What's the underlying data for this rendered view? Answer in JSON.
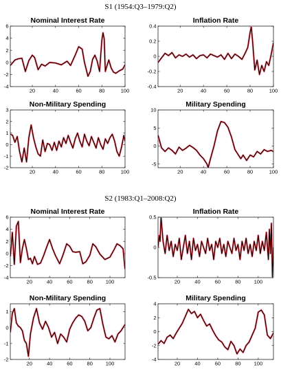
{
  "sections": [
    {
      "title": "S1 (1954:Q3–1979:Q2)"
    },
    {
      "title": "S2 (1983:Q1–2008:Q2)"
    }
  ],
  "colors": {
    "line_main": "#000000",
    "line_band": "#d40000",
    "band_glow": "#f4c4d4"
  },
  "chart_data": [
    {
      "type": "line",
      "title": "Nominal Interest Rate",
      "xlim": [
        1,
        100
      ],
      "ylim": [
        -4,
        6
      ],
      "xticks": [
        20,
        40,
        60,
        80,
        100
      ],
      "yticks": [
        -4,
        -2,
        0,
        2,
        4,
        6
      ],
      "series": [
        {
          "x": [
            1,
            5,
            8,
            11,
            14,
            17,
            20,
            22,
            25,
            28,
            31,
            35,
            40,
            45,
            50,
            53,
            57,
            60,
            63,
            65,
            68,
            70,
            72,
            74,
            76,
            78,
            80,
            81,
            82,
            83,
            84,
            86,
            88,
            90,
            92,
            95,
            98,
            100
          ],
          "y": [
            -0.5,
            0.4,
            0.6,
            0.7,
            -1.5,
            0.3,
            1.2,
            0.8,
            -1.2,
            -0.3,
            -0.6,
            0,
            -0.1,
            -0.4,
            0.2,
            -0.5,
            1.2,
            2.6,
            2.2,
            0,
            -2.3,
            -1.5,
            0.5,
            1.2,
            0.2,
            -1.5,
            3.7,
            4.9,
            3.9,
            -1.5,
            -0.8,
            0.4,
            -0.9,
            -1.6,
            -1.8,
            -1.4,
            -1.1,
            -0.4
          ]
        }
      ]
    },
    {
      "type": "line",
      "title": "Inflation Rate",
      "xlim": [
        1,
        100
      ],
      "ylim": [
        -0.4,
        0.4
      ],
      "xticks": [
        20,
        40,
        60,
        80,
        100
      ],
      "yticks": [
        -0.4,
        -0.2,
        0,
        0.2,
        0.4
      ],
      "series": [
        {
          "x": [
            1,
            4,
            7,
            10,
            13,
            16,
            19,
            22,
            25,
            28,
            31,
            34,
            37,
            40,
            43,
            46,
            49,
            52,
            55,
            58,
            61,
            64,
            67,
            70,
            73,
            76,
            78,
            80,
            81,
            82,
            84,
            86,
            88,
            90,
            92,
            94,
            96,
            98,
            100
          ],
          "y": [
            -0.08,
            -0.02,
            0.04,
            0.01,
            0.05,
            -0.02,
            0.02,
            0.0,
            0.03,
            -0.01,
            0.02,
            -0.03,
            0.01,
            0.02,
            -0.02,
            0.03,
            0.01,
            -0.01,
            0.02,
            -0.04,
            0.04,
            -0.03,
            0.03,
            0.0,
            -0.04,
            0.05,
            0.12,
            0.32,
            0.39,
            0.22,
            -0.18,
            -0.05,
            -0.24,
            -0.12,
            -0.2,
            -0.07,
            -0.12,
            0.02,
            0.18
          ]
        }
      ]
    },
    {
      "type": "line",
      "title": "Non-Military Spending",
      "xlim": [
        1,
        100
      ],
      "ylim": [
        -2,
        3
      ],
      "xticks": [
        20,
        40,
        60,
        80,
        100
      ],
      "yticks": [
        -2,
        -1,
        0,
        1,
        2,
        3
      ],
      "series": [
        {
          "x": [
            1,
            3,
            5,
            7,
            9,
            11,
            13,
            15,
            17,
            19,
            21,
            23,
            25,
            27,
            29,
            31,
            33,
            35,
            37,
            39,
            41,
            43,
            45,
            47,
            49,
            51,
            53,
            55,
            57,
            59,
            61,
            63,
            65,
            67,
            69,
            71,
            73,
            75,
            77,
            79,
            81,
            83,
            85,
            87,
            89,
            91,
            93,
            95,
            97,
            99,
            100
          ],
          "y": [
            0.9,
            0.8,
            0.2,
            0.7,
            -0.6,
            -1.5,
            -0.3,
            -1.5,
            0.6,
            1.7,
            0.6,
            -0.2,
            -0.8,
            -1.0,
            0.4,
            -0.6,
            0.1,
            0.0,
            -0.5,
            0.2,
            -0.5,
            0.3,
            -0.2,
            0.6,
            0.1,
            0.8,
            0.2,
            -0.3,
            0.5,
            1.0,
            0.3,
            -0.2,
            0.9,
            0.3,
            -0.1,
            0.7,
            0.2,
            -0.3,
            0.6,
            0.0,
            -0.4,
            0.5,
            0.1,
            0.6,
            0.9,
            0.3,
            -0.6,
            -1.0,
            -0.2,
            0.8,
            0.3
          ]
        }
      ]
    },
    {
      "type": "line",
      "title": "Military Spending",
      "xlim": [
        1,
        100
      ],
      "ylim": [
        -6,
        10
      ],
      "xticks": [
        20,
        40,
        60,
        80,
        100
      ],
      "yticks": [
        -5,
        0,
        5,
        10
      ],
      "series": [
        {
          "x": [
            1,
            4,
            7,
            10,
            13,
            16,
            19,
            22,
            25,
            28,
            31,
            34,
            37,
            40,
            43,
            44,
            46,
            49,
            52,
            55,
            58,
            61,
            64,
            67,
            70,
            72,
            74,
            77,
            80,
            83,
            86,
            89,
            92,
            95,
            98,
            100
          ],
          "y": [
            3,
            -0.5,
            -1.5,
            -0.5,
            -1.2,
            -2.2,
            -0.3,
            -1.2,
            -0.6,
            0.2,
            -0.4,
            -1.2,
            -2.5,
            -3.5,
            -5,
            -6,
            -3.5,
            0,
            4.2,
            6.8,
            6.5,
            5.2,
            2.5,
            -1,
            -2.5,
            -3.5,
            -2.5,
            -4,
            -2.5,
            -3,
            -1.5,
            -2.2,
            -1,
            -1.5,
            -1.2,
            -1.5
          ]
        }
      ]
    },
    {
      "type": "line",
      "title": "Nominal Interest Rate",
      "xlim": [
        1,
        115
      ],
      "ylim": [
        -4,
        6
      ],
      "xticks": [
        20,
        40,
        60,
        80,
        100
      ],
      "yticks": [
        -4,
        -2,
        0,
        2,
        4,
        6
      ],
      "series": [
        {
          "x": [
            1,
            3,
            5,
            7,
            9,
            11,
            13,
            15,
            17,
            19,
            21,
            23,
            25,
            28,
            31,
            34,
            37,
            40,
            43,
            46,
            50,
            53,
            57,
            60,
            63,
            66,
            70,
            73,
            76,
            80,
            83,
            86,
            90,
            95,
            100,
            104,
            107,
            110,
            113,
            115
          ],
          "y": [
            -0.5,
            3.5,
            -1.8,
            4.5,
            5.3,
            -1.5,
            0.8,
            2.3,
            0.8,
            -1,
            -0.8,
            -1.7,
            -0.5,
            -1.8,
            -1.6,
            -0.4,
            1.0,
            2.3,
            0.8,
            -0.4,
            -1.7,
            -0.4,
            1.6,
            1.2,
            0.3,
            0.2,
            0.3,
            -1.7,
            -1.4,
            -0.3,
            1.6,
            1.1,
            -0.1,
            -1.0,
            -0.6,
            0.6,
            1.6,
            1.3,
            0.8,
            -2.6
          ]
        }
      ]
    },
    {
      "type": "line",
      "title": "Inflation Rate",
      "xlim": [
        1,
        115
      ],
      "ylim": [
        -0.5,
        0.5
      ],
      "xticks": [
        20,
        40,
        60,
        80,
        100
      ],
      "yticks": [
        -0.5,
        0,
        0.5
      ],
      "series": [
        {
          "x": [
            1,
            2,
            3,
            4,
            5,
            6,
            8,
            10,
            12,
            14,
            16,
            18,
            20,
            22,
            24,
            26,
            28,
            30,
            32,
            34,
            36,
            38,
            40,
            42,
            44,
            46,
            48,
            50,
            52,
            54,
            56,
            58,
            60,
            62,
            64,
            66,
            68,
            70,
            72,
            74,
            76,
            78,
            80,
            82,
            84,
            86,
            88,
            90,
            92,
            94,
            96,
            98,
            100,
            102,
            104,
            106,
            108,
            110,
            111,
            112,
            113,
            114,
            115
          ],
          "y": [
            0.0,
            0.2,
            0.1,
            0.5,
            0.3,
            0.1,
            -0.1,
            0.2,
            -0.05,
            0.1,
            -0.15,
            0.05,
            -0.05,
            0.15,
            -0.2,
            0.0,
            0.2,
            -0.1,
            0.1,
            -0.2,
            0.15,
            -0.05,
            0.05,
            -0.15,
            0.1,
            0.0,
            -0.1,
            0.15,
            -0.05,
            0.05,
            -0.2,
            0.1,
            0.0,
            0.15,
            -0.1,
            0.05,
            -0.15,
            0.1,
            0.0,
            -0.1,
            0.15,
            -0.05,
            0.05,
            -0.2,
            0.1,
            -0.05,
            0.15,
            -0.1,
            0.05,
            -0.15,
            0.1,
            -0.05,
            0.2,
            -0.1,
            0.1,
            -0.05,
            0.25,
            -0.2,
            0.3,
            -0.1,
            0.4,
            -0.5,
            0.0
          ]
        }
      ]
    },
    {
      "type": "line",
      "title": "Non-Military Spending",
      "xlim": [
        1,
        115
      ],
      "ylim": [
        -2,
        1.5
      ],
      "xticks": [
        20,
        40,
        60,
        80,
        100
      ],
      "yticks": [
        -2,
        -1,
        0,
        1
      ],
      "series": [
        {
          "x": [
            1,
            3,
            5,
            7,
            9,
            11,
            13,
            15,
            17,
            19,
            21,
            24,
            27,
            30,
            33,
            36,
            39,
            42,
            45,
            48,
            51,
            54,
            57,
            60,
            63,
            66,
            69,
            72,
            75,
            78,
            81,
            84,
            87,
            90,
            93,
            96,
            99,
            102,
            105,
            108,
            111,
            115
          ],
          "y": [
            -0.3,
            0.9,
            1.2,
            0.3,
            0.1,
            0.0,
            -0.2,
            -0.8,
            -1.0,
            -1.8,
            -0.4,
            0.6,
            1.2,
            0.3,
            -0.1,
            0.4,
            0.0,
            -0.6,
            -0.3,
            -1.0,
            -0.4,
            -0.6,
            -0.9,
            -0.1,
            0.3,
            0.6,
            0.8,
            0.7,
            0.4,
            -0.2,
            0.0,
            0.6,
            1.1,
            1.2,
            0.2,
            -0.6,
            -0.7,
            -0.5,
            -0.9,
            -0.4,
            -0.2,
            0.2
          ]
        }
      ]
    },
    {
      "type": "line",
      "title": "Military Spending",
      "xlim": [
        1,
        115
      ],
      "ylim": [
        -4,
        4
      ],
      "xticks": [
        20,
        40,
        60,
        80,
        100
      ],
      "yticks": [
        -4,
        -2,
        0,
        2,
        4
      ],
      "series": [
        {
          "x": [
            1,
            4,
            7,
            10,
            13,
            16,
            19,
            22,
            25,
            28,
            31,
            34,
            37,
            40,
            43,
            46,
            49,
            52,
            55,
            58,
            61,
            64,
            67,
            70,
            73,
            76,
            79,
            82,
            85,
            88,
            91,
            94,
            97,
            100,
            103,
            106,
            109,
            112,
            115
          ],
          "y": [
            -1.8,
            -1.3,
            -1.7,
            -0.8,
            -0.5,
            -1.0,
            -0.2,
            0.5,
            1.2,
            2.2,
            3.2,
            2.6,
            2.9,
            2.0,
            2.5,
            1.6,
            0.8,
            1.1,
            0.2,
            -0.6,
            -1.2,
            -1.5,
            -2.2,
            -2.6,
            -1.4,
            -2.0,
            -3.2,
            -2.5,
            -3.0,
            -2.0,
            -1.5,
            -0.5,
            0.5,
            2.8,
            3.1,
            2.4,
            -0.5,
            -1.0,
            -0.2
          ]
        }
      ]
    }
  ]
}
